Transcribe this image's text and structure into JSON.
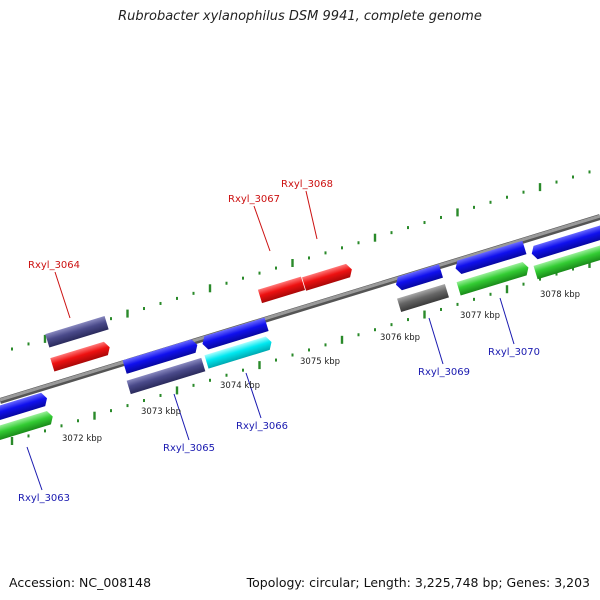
{
  "title": "Rubrobacter xylanophilus DSM 9941, complete genome",
  "footer": {
    "accession": "Accession: NC_008148",
    "stats": "Topology: circular; Length: 3,225,748 bp; Genes: 3,203"
  },
  "colors": {
    "forward_ticks": "#2a8a2a",
    "reverse_ticks": "#2a8a2a",
    "highlight_label": "#cc1111",
    "gene_label": "#1a1ab0",
    "blue_gene": "#1010ee",
    "slate_gene": "#4a4a8a",
    "red_gene": "#ee1111",
    "cyan_gene": "#00e8f0",
    "green_gene": "#33cc33",
    "grey_gene": "#666666",
    "backbone": "#888888"
  },
  "kbp_ticks": [
    {
      "label": "3072 kbp"
    },
    {
      "label": "3073 kbp"
    },
    {
      "label": "3074 kbp"
    },
    {
      "label": "3075 kbp"
    },
    {
      "label": "3076 kbp"
    },
    {
      "label": "3077 kbp"
    },
    {
      "label": "3078 kbp"
    }
  ],
  "gene_labels": [
    {
      "name": "Rxyl_3063",
      "group": "reverse"
    },
    {
      "name": "Rxyl_3064",
      "group": "highlight"
    },
    {
      "name": "Rxyl_3065",
      "group": "reverse"
    },
    {
      "name": "Rxyl_3066",
      "group": "reverse"
    },
    {
      "name": "Rxyl_3067",
      "group": "highlight"
    },
    {
      "name": "Rxyl_3068",
      "group": "highlight"
    },
    {
      "name": "Rxyl_3069",
      "group": "reverse"
    },
    {
      "name": "Rxyl_3070",
      "group": "reverse"
    }
  ]
}
